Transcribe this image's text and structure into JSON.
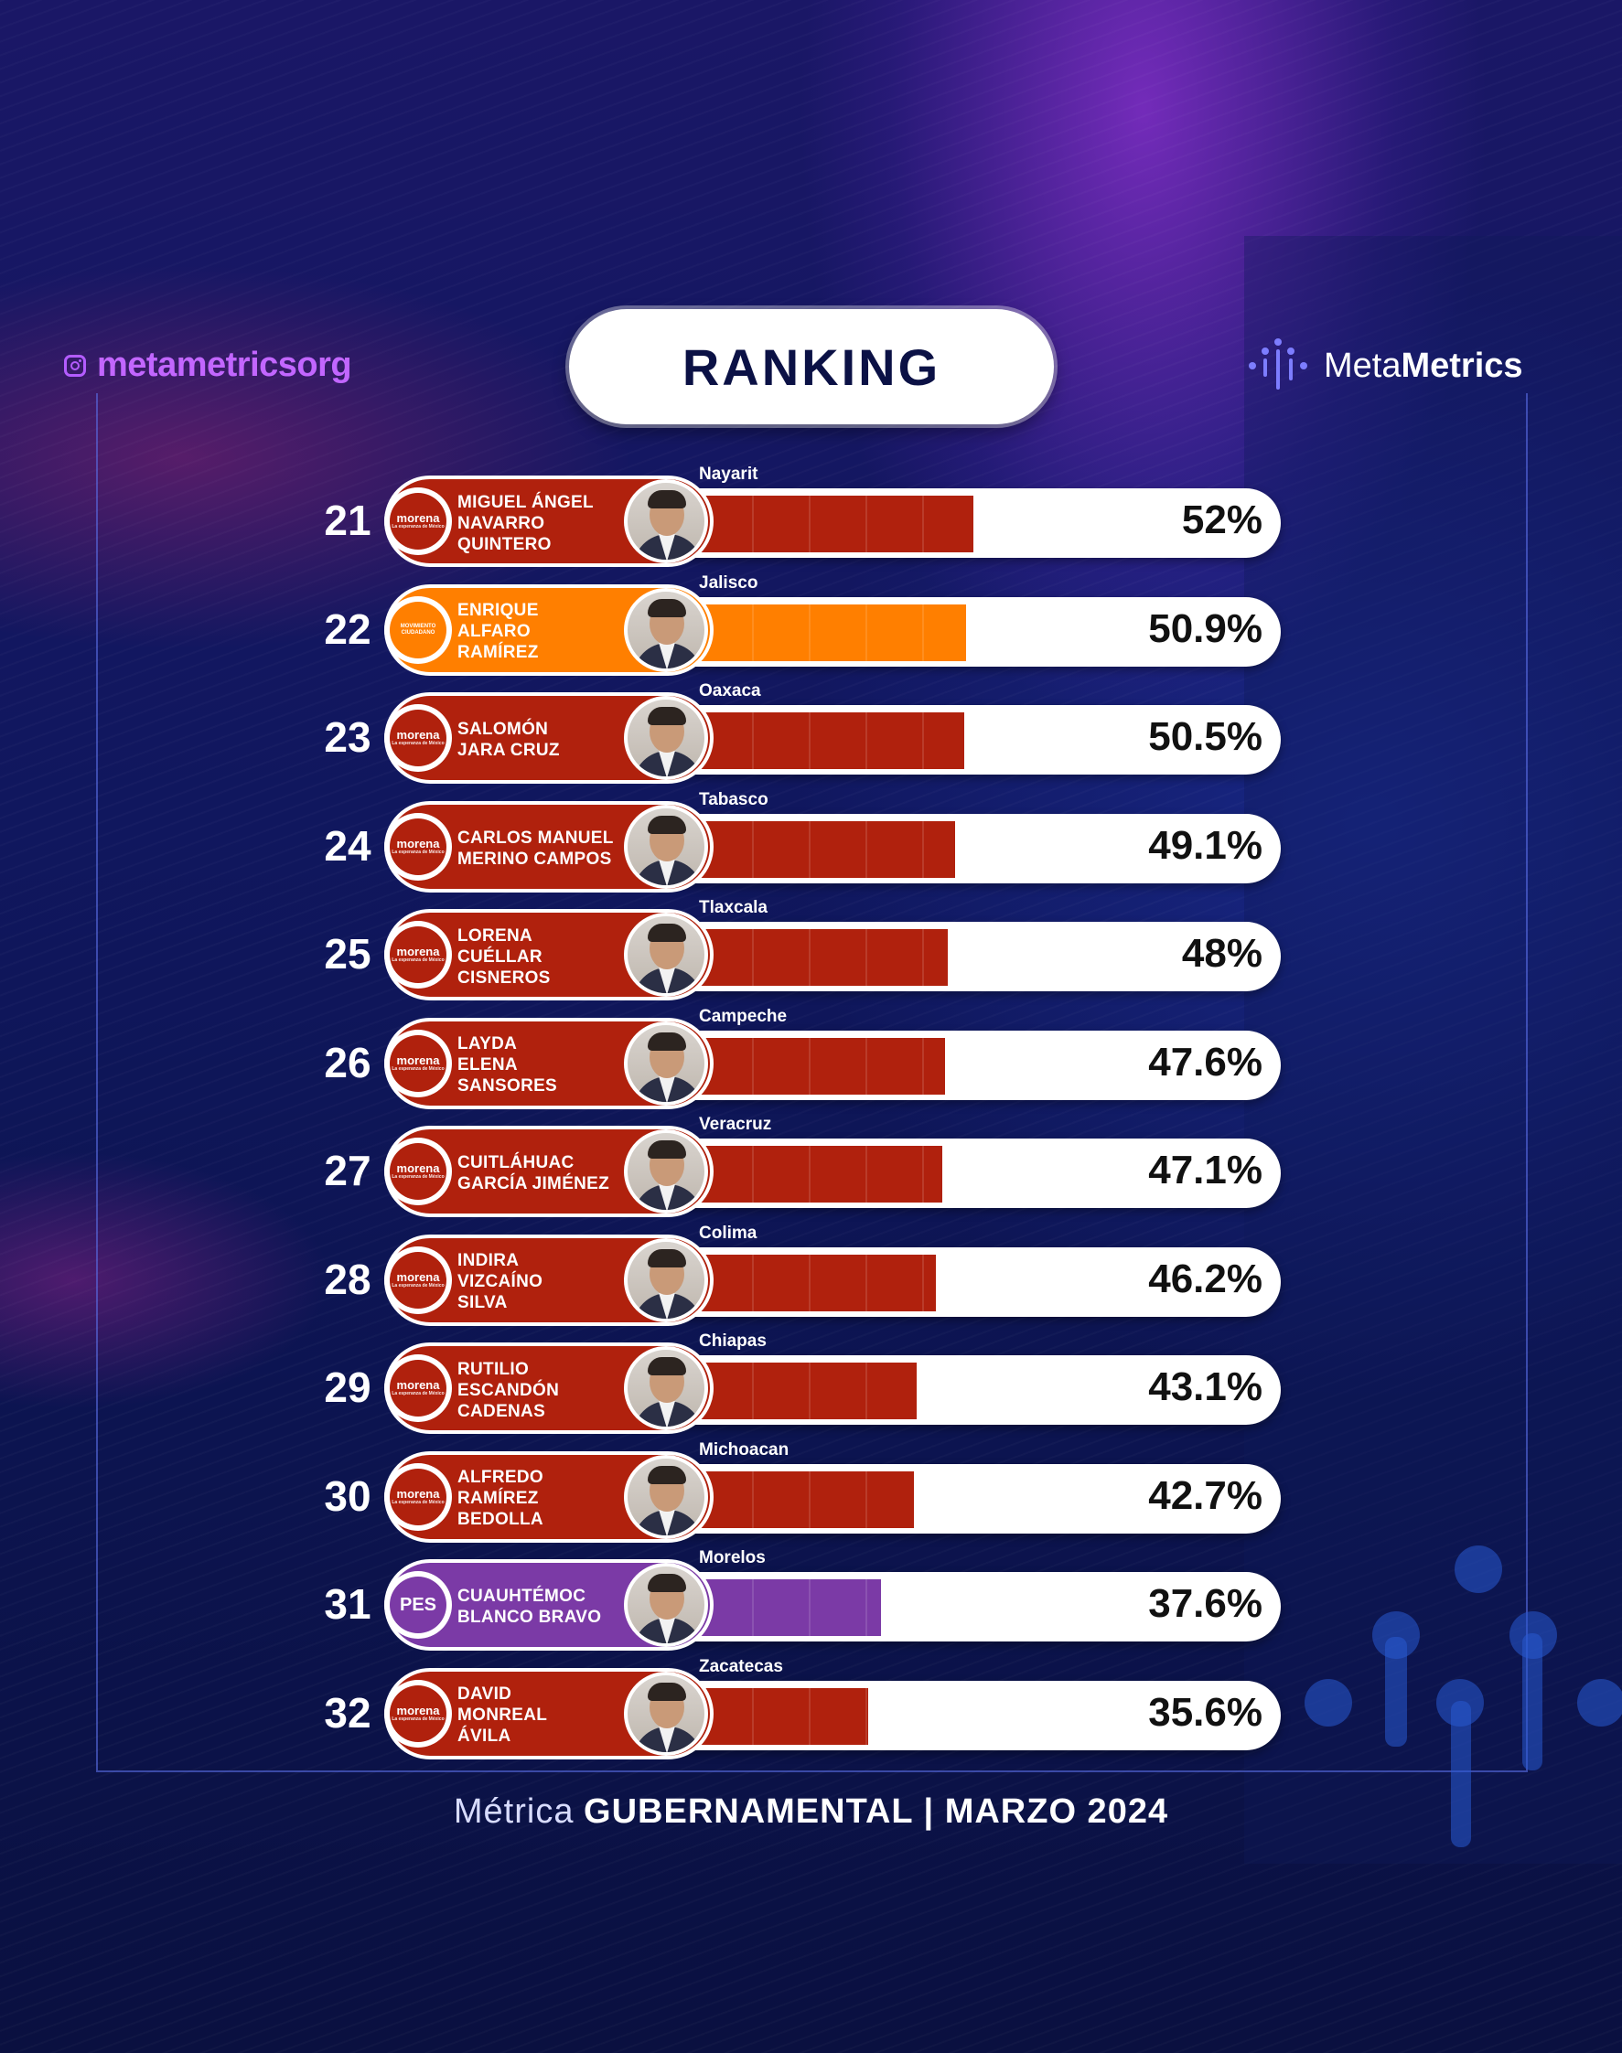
{
  "header": {
    "handle": "metametricsorg",
    "title": "RANKING",
    "brand_light": "Meta",
    "brand_bold": "Metrics"
  },
  "footer": {
    "light": "Métrica",
    "bold": "GUBERNAMENTAL | MARZO 2024"
  },
  "colors": {
    "morena": "#b0210d",
    "movimiento_ciudadano": "#ff7f00",
    "pes": "#7b3aa6",
    "accent": "#c266ff"
  },
  "chart_data": {
    "type": "bar",
    "orientation": "horizontal",
    "title": "RANKING",
    "xlim": [
      0,
      100
    ],
    "items": [
      {
        "rank": "21",
        "name": "MIGUEL ÁNGEL\nNAVARRO\nQUINTERO",
        "state": "Nayarit",
        "value": 52,
        "label": "52%",
        "party": "morena",
        "party_label": "morena",
        "party_sub": "La esperanza de México"
      },
      {
        "rank": "22",
        "name": "ENRIQUE\nALFARO\nRAMÍREZ",
        "state": "Jalisco",
        "value": 50.9,
        "label": "50.9%",
        "party": "movimiento_ciudadano",
        "party_label": "MOVIMIENTO\nCIUDADANO",
        "party_sub": ""
      },
      {
        "rank": "23",
        "name": "SALOMÓN\nJARA CRUZ",
        "state": "Oaxaca",
        "value": 50.5,
        "label": "50.5%",
        "party": "morena",
        "party_label": "morena",
        "party_sub": "La esperanza de México"
      },
      {
        "rank": "24",
        "name": "CARLOS MANUEL\nMERINO CAMPOS",
        "state": "Tabasco",
        "value": 49.1,
        "label": "49.1%",
        "party": "morena",
        "party_label": "morena",
        "party_sub": "La esperanza de México"
      },
      {
        "rank": "25",
        "name": "LORENA\nCUÉLLAR\nCISNEROS",
        "state": "Tlaxcala",
        "value": 48,
        "label": "48%",
        "party": "morena",
        "party_label": "morena",
        "party_sub": "La esperanza de México"
      },
      {
        "rank": "26",
        "name": "LAYDA\nELENA\nSANSORES",
        "state": "Campeche",
        "value": 47.6,
        "label": "47.6%",
        "party": "morena",
        "party_label": "morena",
        "party_sub": "La esperanza de México"
      },
      {
        "rank": "27",
        "name": "CUITLÁHUAC\nGARCÍA JIMÉNEZ",
        "state": "Veracruz",
        "value": 47.1,
        "label": "47.1%",
        "party": "morena",
        "party_label": "morena",
        "party_sub": "La esperanza de México"
      },
      {
        "rank": "28",
        "name": "INDIRA\nVIZCAÍNO\nSILVA",
        "state": "Colima",
        "value": 46.2,
        "label": "46.2%",
        "party": "morena",
        "party_label": "morena",
        "party_sub": "La esperanza de México"
      },
      {
        "rank": "29",
        "name": "RUTILIO\nESCANDÓN\nCADENAS",
        "state": "Chiapas",
        "value": 43.1,
        "label": "43.1%",
        "party": "morena",
        "party_label": "morena",
        "party_sub": "La esperanza de México"
      },
      {
        "rank": "30",
        "name": "ALFREDO\nRAMÍREZ\nBEDOLLA",
        "state": "Michoacan",
        "value": 42.7,
        "label": "42.7%",
        "party": "morena",
        "party_label": "morena",
        "party_sub": "La esperanza de México"
      },
      {
        "rank": "31",
        "name": "CUAUHTÉMOC\nBLANCO BRAVO",
        "state": "Morelos",
        "value": 37.6,
        "label": "37.6%",
        "party": "pes",
        "party_label": "PES",
        "party_sub": ""
      },
      {
        "rank": "32",
        "name": "DAVID\nMONREAL\nÁVILA",
        "state": "Zacatecas",
        "value": 35.6,
        "label": "35.6%",
        "party": "morena",
        "party_label": "morena",
        "party_sub": "La esperanza de México"
      }
    ]
  }
}
